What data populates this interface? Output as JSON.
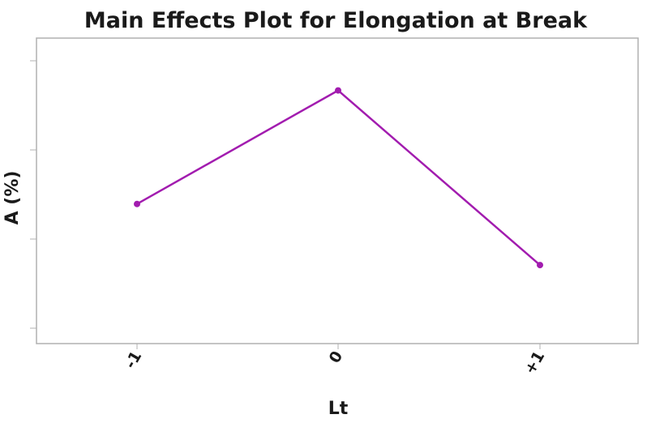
{
  "chart_data": {
    "type": "line",
    "title": "Main Effects Plot for Elongation at Break",
    "xlabel": "Lt",
    "ylabel": "A (%)",
    "categories": [
      "-1",
      "0",
      "+1"
    ],
    "series": [
      {
        "values": [
          62,
          88,
          48
        ]
      }
    ],
    "ylim": [
      30,
      100
    ],
    "grid": false,
    "legend": "none",
    "colors": {
      "line": "#a21caf",
      "frame": "#b0b0b0",
      "text": "#1a1a1a"
    }
  }
}
